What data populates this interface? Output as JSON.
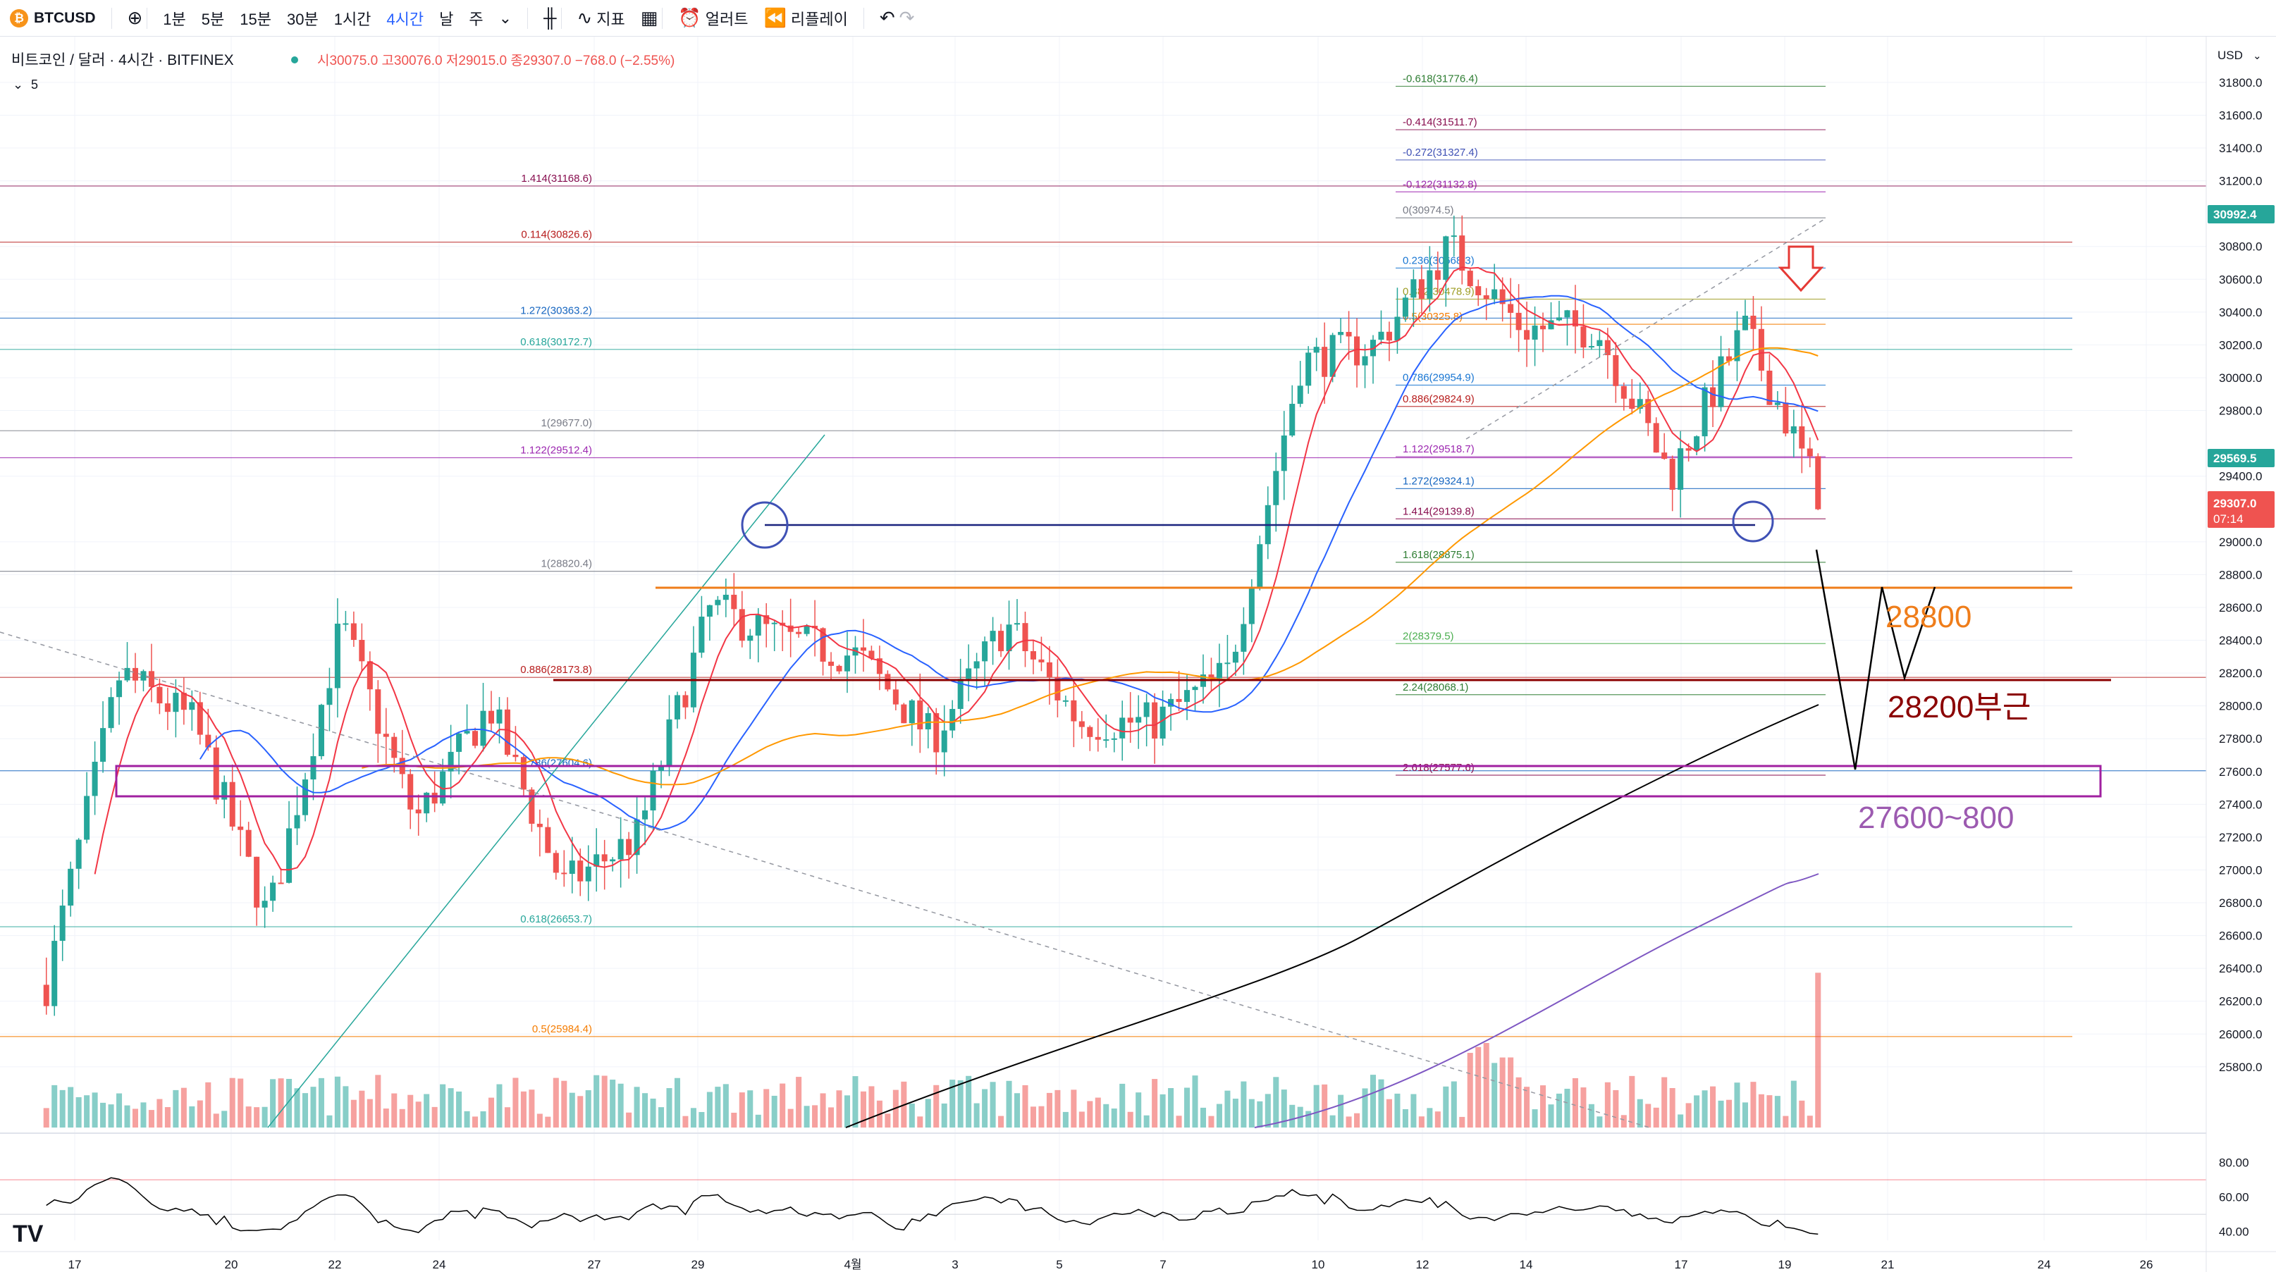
{
  "toolbar": {
    "symbol": "BTCUSD",
    "add_icon": "plus-circle-icon",
    "intervals": [
      "1분",
      "5분",
      "15분",
      "30분",
      "1시간",
      "4시간",
      "날",
      "주"
    ],
    "active_interval": "4시간",
    "indicators_label": "지표",
    "alert_label": "얼러트",
    "replay_label": "리플레이"
  },
  "legend": {
    "title": "비트코인 / 달러 · 4시간 · BITFINEX",
    "ohlc": "시30075.0 고30076.0 저29015.0 종29307.0 −768.0 (−2.55%)",
    "indicator_count": "5"
  },
  "axis": {
    "currency": "USD",
    "price_labels": [
      "31800.0",
      "31600.0",
      "31400.0",
      "31200.0",
      "30800.0",
      "30600.0",
      "30400.0",
      "30200.0",
      "30000.0",
      "29800.0",
      "29400.0",
      "29000.0",
      "28800.0",
      "28600.0",
      "28400.0",
      "28200.0",
      "28000.0",
      "27800.0",
      "27600.0",
      "27400.0",
      "27200.0",
      "27000.0",
      "26800.0",
      "26600.0",
      "26400.0",
      "26200.0",
      "26000.0",
      "25800.0"
    ],
    "rsi_labels": [
      "80.00",
      "60.00",
      "40.00"
    ],
    "time_labels": [
      "17",
      "20",
      "22",
      "24",
      "27",
      "29",
      "4월",
      "3",
      "5",
      "7",
      "10",
      "12",
      "14",
      "17",
      "19",
      "21",
      "24",
      "26"
    ]
  },
  "price_tags": {
    "top": "30992.4",
    "mid": "29569.5",
    "last": "29307.0",
    "countdown": "07:14"
  },
  "fib_labels": [
    {
      "text": "-0.618(31776.4)",
      "price": 31776.4,
      "color": "#2e7d32"
    },
    {
      "text": "-0.414(31511.7)",
      "price": 31511.7,
      "color": "#880e4f"
    },
    {
      "text": "-0.272(31327.4)",
      "price": 31327.4,
      "color": "#3f51b5"
    },
    {
      "text": "-0.122(31132.8)",
      "price": 31132.8,
      "color": "#9c27b0"
    },
    {
      "text": "1.414(31168.6)",
      "price": 31168.6,
      "color": "#880e4f"
    },
    {
      "text": "0(30974.5)",
      "price": 30974.5,
      "color": "#787b86"
    },
    {
      "text": "0.114(30826.6)",
      "price": 30826.6,
      "color": "#b71c1c"
    },
    {
      "text": "0.236(30668.3)",
      "price": 30668.3,
      "color": "#1976d2"
    },
    {
      "text": "0.382(30478.9)",
      "price": 30478.9,
      "color": "#9e9d24"
    },
    {
      "text": "0.5(30325.8)",
      "price": 30325.8,
      "color": "#f57c00"
    },
    {
      "text": "1.272(30363.2)",
      "price": 30363.2,
      "color": "#1565c0"
    },
    {
      "text": "0.618(30172.7)",
      "price": 30172.7,
      "color": "#26a69a"
    },
    {
      "text": "0.786(29954.9)",
      "price": 29954.9,
      "color": "#1976d2"
    },
    {
      "text": "0.886(29824.9)",
      "price": 29824.9,
      "color": "#b71c1c"
    },
    {
      "text": "1(29677.0)",
      "price": 29677.0,
      "color": "#787b86"
    },
    {
      "text": "1.122(29512.4)",
      "price": 29512.4,
      "color": "#9c27b0"
    },
    {
      "text": "1.122(29518.7)",
      "price": 29518.7,
      "color": "#9c27b0"
    },
    {
      "text": "1.272(29324.1)",
      "price": 29324.1,
      "color": "#1565c0"
    },
    {
      "text": "1.414(29139.8)",
      "price": 29139.8,
      "color": "#880e4f"
    },
    {
      "text": "1(28820.4)",
      "price": 28820.4,
      "color": "#787b86"
    },
    {
      "text": "1.618(28875.1)",
      "price": 28875.1,
      "color": "#2e7d32"
    },
    {
      "text": "2(28379.5)",
      "price": 28379.5,
      "color": "#4caf50"
    },
    {
      "text": "0.886(28173.8)",
      "price": 28173.8,
      "color": "#b71c1c"
    },
    {
      "text": "2.24(28068.1)",
      "price": 28068.1,
      "color": "#2e7d32"
    },
    {
      "text": "0.786(27604.6)",
      "price": 27604.6,
      "color": "#1565c0"
    },
    {
      "text": "2.618(27577.6)",
      "price": 27577.6,
      "color": "#880e4f"
    },
    {
      "text": "0.618(26653.7)",
      "price": 26653.7,
      "color": "#26a69a"
    },
    {
      "text": "0.5(25984.4)",
      "price": 25984.4,
      "color": "#f57c00"
    }
  ],
  "annotations": {
    "level_28800": "28800",
    "level_28200": "28200부근",
    "zone_27600_27800": "27600~800"
  },
  "colors": {
    "up": "#26a69a",
    "down": "#ef5350",
    "ma_red": "#f23645",
    "ma_blue": "#2962ff",
    "ma_orange": "#ff9800",
    "ma_black": "#000000",
    "ma_purple": "#7e57c2",
    "zone_magenta": "#a020a0",
    "annot_orange": "#ef7d1a",
    "annot_darkred": "#8b0000",
    "annot_purple": "#9c5ab0"
  },
  "chart_data": {
    "type": "candlestick",
    "instrument": "BTCUSD",
    "timeframe": "4시간",
    "ylim": [
      25700,
      31950
    ],
    "rsi_ylim": [
      35,
      90
    ],
    "approx_close_path": [
      {
        "x": "17",
        "price": 26300
      },
      {
        "x": "20",
        "price": 28200
      },
      {
        "x": "22",
        "price": 27900
      },
      {
        "x": "23",
        "price": 26700
      },
      {
        "x": "24",
        "price": 28500
      },
      {
        "x": "26",
        "price": 27300
      },
      {
        "x": "27",
        "price": 28000
      },
      {
        "x": "28",
        "price": 26900
      },
      {
        "x": "29",
        "price": 27200
      },
      {
        "x": "30",
        "price": 28600
      },
      {
        "x": "4월",
        "price": 28400
      },
      {
        "x": "3",
        "price": 28300
      },
      {
        "x": "4",
        "price": 27800
      },
      {
        "x": "5",
        "price": 28500
      },
      {
        "x": "7",
        "price": 27900
      },
      {
        "x": "9",
        "price": 27900
      },
      {
        "x": "10",
        "price": 28200
      },
      {
        "x": "11",
        "price": 30100
      },
      {
        "x": "13",
        "price": 30200
      },
      {
        "x": "14",
        "price": 30800
      },
      {
        "x": "15",
        "price": 30300
      },
      {
        "x": "17",
        "price": 30300
      },
      {
        "x": "18",
        "price": 29400
      },
      {
        "x": "19",
        "price": 30300
      },
      {
        "x": "19",
        "price": 29307
      }
    ]
  }
}
